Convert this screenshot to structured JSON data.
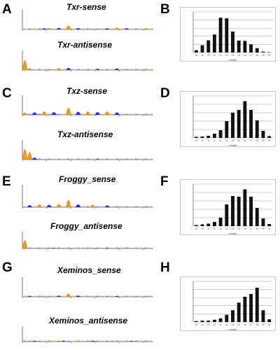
{
  "panels": [
    {
      "id": "A",
      "kind": "logo-pair",
      "letter": "A",
      "sense_title": "Txr-sense",
      "antisense_title": "Txr-antisense",
      "sense_peaks": [
        {
          "x": 5,
          "h": 0.18,
          "color": "#1a1aff"
        },
        {
          "x": 6,
          "h": 0.22,
          "color": "#e8900a"
        },
        {
          "x": 8,
          "h": 0.25,
          "color": "#1a1aff"
        },
        {
          "x": 10,
          "h": 0.65,
          "color": "#e8900a"
        },
        {
          "x": 12,
          "h": 0.22,
          "color": "#1a1aff"
        },
        {
          "x": 18,
          "h": 0.18,
          "color": "#1a1aff"
        },
        {
          "x": 20,
          "h": 0.3,
          "color": "#e8900a"
        },
        {
          "x": 22,
          "h": 0.2,
          "color": "#1a1aff"
        },
        {
          "x": 26,
          "h": 0.22,
          "color": "#e8900a"
        }
      ],
      "antisense_peaks": [
        {
          "x": 1,
          "h": 1.6,
          "color": "#e8900a"
        },
        {
          "x": 2,
          "h": 0.25,
          "color": "#e8900a"
        },
        {
          "x": 8,
          "h": 0.3,
          "color": "#e8900a"
        },
        {
          "x": 10,
          "h": 0.35,
          "color": "#1a1aff"
        },
        {
          "x": 16,
          "h": 0.2,
          "color": "#1a1aff"
        },
        {
          "x": 20,
          "h": 0.25,
          "color": "#1a1aff"
        },
        {
          "x": 26,
          "h": 0.18,
          "color": "#e8900a"
        }
      ]
    },
    {
      "id": "B",
      "kind": "length-histogram",
      "letter": "B",
      "chart_data": {
        "type": "bar",
        "categories": [
          "18",
          "19",
          "20",
          "21",
          "22",
          "23",
          "24",
          "25",
          "26",
          "27",
          "28",
          "29",
          "30"
        ],
        "values": [
          0.8,
          2.5,
          4.2,
          6.2,
          12.0,
          11.8,
          7.2,
          4.1,
          4.0,
          2.8,
          1.5,
          0.3,
          0.1
        ],
        "ylim": [
          0,
          14
        ],
        "grid": true,
        "xlabel": "Length",
        "ylabel": "",
        "title": ""
      }
    },
    {
      "id": "C",
      "kind": "logo-pair",
      "letter": "C",
      "sense_title": "Txz-sense",
      "antisense_title": "Txz-antisense",
      "sense_peaks": [
        {
          "x": 1,
          "h": 0.35,
          "color": "#e8900a"
        },
        {
          "x": 3,
          "h": 0.4,
          "color": "#1a1aff"
        },
        {
          "x": 5,
          "h": 0.55,
          "color": "#e8900a"
        },
        {
          "x": 7,
          "h": 0.45,
          "color": "#1a1aff"
        },
        {
          "x": 10,
          "h": 1.15,
          "color": "#e8900a"
        },
        {
          "x": 12,
          "h": 0.5,
          "color": "#1a1aff"
        },
        {
          "x": 14,
          "h": 0.55,
          "color": "#e8900a"
        },
        {
          "x": 16,
          "h": 0.45,
          "color": "#1a1aff"
        },
        {
          "x": 18,
          "h": 0.55,
          "color": "#e8900a"
        },
        {
          "x": 20,
          "h": 0.4,
          "color": "#1a1aff"
        }
      ],
      "antisense_peaks": [
        {
          "x": 1,
          "h": 1.7,
          "color": "#e8900a"
        },
        {
          "x": 2,
          "h": 1.2,
          "color": "#e8900a"
        },
        {
          "x": 3,
          "h": 0.35,
          "color": "#1a1aff"
        },
        {
          "x": 8,
          "h": 0.1,
          "color": "#e8900a"
        },
        {
          "x": 16,
          "h": 0.1,
          "color": "#1a1aff"
        }
      ]
    },
    {
      "id": "D",
      "kind": "length-histogram",
      "letter": "D",
      "chart_data": {
        "type": "bar",
        "categories": [
          "18",
          "19",
          "20",
          "21",
          "22",
          "23",
          "24",
          "25",
          "26",
          "27",
          "28",
          "29",
          "30"
        ],
        "values": [
          0.3,
          0.4,
          0.6,
          1.2,
          2.2,
          4.8,
          7.2,
          8.0,
          10.5,
          8.0,
          5.0,
          2.0,
          0.5
        ],
        "ylim": [
          0,
          12
        ],
        "grid": true,
        "xlabel": "Length",
        "ylabel": "",
        "title": ""
      }
    },
    {
      "id": "E",
      "kind": "logo-pair",
      "letter": "E",
      "sense_title": "Froggy_sense",
      "antisense_title": "Froggy_antisense",
      "sense_peaks": [
        {
          "x": 2,
          "h": 0.3,
          "color": "#1a1aff"
        },
        {
          "x": 4,
          "h": 0.4,
          "color": "#e8900a"
        },
        {
          "x": 6,
          "h": 0.35,
          "color": "#1a1aff"
        },
        {
          "x": 8,
          "h": 0.45,
          "color": "#e8900a"
        },
        {
          "x": 10,
          "h": 1.05,
          "color": "#e8900a"
        },
        {
          "x": 12,
          "h": 0.4,
          "color": "#1a1aff"
        },
        {
          "x": 15,
          "h": 0.35,
          "color": "#e8900a"
        },
        {
          "x": 18,
          "h": 0.25,
          "color": "#1a1aff"
        }
      ],
      "antisense_peaks": [
        {
          "x": 1,
          "h": 1.6,
          "color": "#e8900a"
        },
        {
          "x": 7,
          "h": 0.12,
          "color": "#1a1aff"
        },
        {
          "x": 12,
          "h": 0.1,
          "color": "#e8900a"
        },
        {
          "x": 18,
          "h": 0.1,
          "color": "#1a1aff"
        },
        {
          "x": 24,
          "h": 0.1,
          "color": "#e8900a"
        }
      ]
    },
    {
      "id": "F",
      "kind": "length-histogram",
      "letter": "F",
      "chart_data": {
        "type": "bar",
        "categories": [
          "18",
          "19",
          "20",
          "21",
          "22",
          "23",
          "24",
          "25",
          "26",
          "27",
          "28",
          "29",
          "30"
        ],
        "values": [
          0.3,
          0.5,
          0.7,
          1.2,
          2.4,
          6.2,
          8.6,
          8.4,
          10.5,
          8.4,
          5.2,
          2.2,
          0.6
        ],
        "ylim": [
          0,
          12
        ],
        "grid": true,
        "xlabel": "Length",
        "ylabel": "",
        "title": ""
      }
    },
    {
      "id": "G",
      "kind": "logo-pair",
      "letter": "G",
      "sense_title": "Xeminos_sense",
      "antisense_title": "Xeminos_antisense",
      "sense_peaks": [
        {
          "x": 2,
          "h": 0.15,
          "color": "#1a1aff"
        },
        {
          "x": 5,
          "h": 0.2,
          "color": "#e8900a"
        },
        {
          "x": 8,
          "h": 0.2,
          "color": "#1a1aff"
        },
        {
          "x": 10,
          "h": 0.55,
          "color": "#e8900a"
        },
        {
          "x": 12,
          "h": 0.2,
          "color": "#1a1aff"
        },
        {
          "x": 16,
          "h": 0.15,
          "color": "#e8900a"
        },
        {
          "x": 20,
          "h": 0.15,
          "color": "#1a1aff"
        }
      ],
      "antisense_peaks": [
        {
          "x": 1,
          "h": 0.25,
          "color": "#e8900a"
        },
        {
          "x": 3,
          "h": 0.2,
          "color": "#1a1aff"
        },
        {
          "x": 6,
          "h": 0.25,
          "color": "#e8900a"
        },
        {
          "x": 9,
          "h": 0.2,
          "color": "#1a1aff"
        },
        {
          "x": 12,
          "h": 0.22,
          "color": "#e8900a"
        },
        {
          "x": 15,
          "h": 0.2,
          "color": "#1a1aff"
        },
        {
          "x": 19,
          "h": 0.18,
          "color": "#e8900a"
        },
        {
          "x": 23,
          "h": 0.15,
          "color": "#1a1aff"
        }
      ]
    },
    {
      "id": "H",
      "kind": "length-histogram",
      "letter": "H",
      "chart_data": {
        "type": "bar",
        "categories": [
          "18",
          "19",
          "20",
          "21",
          "22",
          "23",
          "24",
          "25",
          "26",
          "27",
          "28",
          "29",
          "30"
        ],
        "values": [
          0.2,
          0.3,
          0.3,
          0.5,
          0.8,
          1.6,
          2.6,
          4.3,
          5.6,
          6.2,
          7.6,
          2.6,
          0.6
        ],
        "ylim": [
          0,
          9
        ],
        "grid": true,
        "xlabel": "Length",
        "ylabel": "",
        "title": ""
      }
    }
  ],
  "colors": {
    "orange": "#e8900a",
    "blue": "#1a1aff",
    "bar": "#111111",
    "grid": "#9a9a9a",
    "axis": "#555555"
  }
}
